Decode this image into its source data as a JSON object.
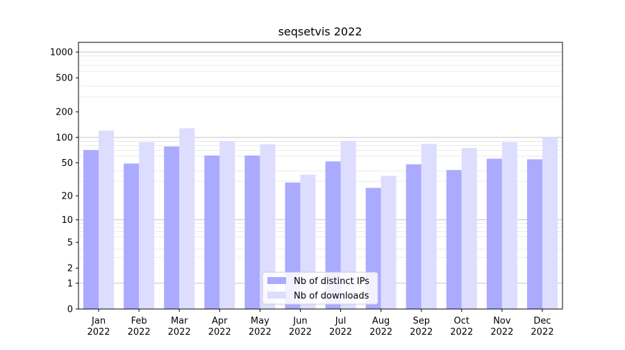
{
  "chart_data": {
    "type": "bar",
    "title": "seqsetvis 2022",
    "xlabel": "",
    "ylabel": "",
    "scale": "log(1+y)",
    "ylim": [
      0,
      1300
    ],
    "yticks": [
      0,
      1,
      2,
      5,
      10,
      20,
      50,
      100,
      200,
      500,
      1000
    ],
    "grid": "major and minor horizontal lines",
    "legend_position": "bottom-center",
    "categories": [
      "Jan\n2022",
      "Feb\n2022",
      "Mar\n2022",
      "Apr\n2022",
      "May\n2022",
      "Jun\n2022",
      "Jul\n2022",
      "Aug\n2022",
      "Sep\n2022",
      "Oct\n2022",
      "Nov\n2022",
      "Dec\n2022"
    ],
    "series": [
      {
        "name": "Nb of distinct IPs",
        "color": "#aaaaff",
        "values": [
          71,
          49,
          78,
          61,
          61,
          29,
          52,
          25,
          48,
          41,
          56,
          55
        ]
      },
      {
        "name": "Nb of downloads",
        "color": "#ddddff",
        "values": [
          120,
          88,
          128,
          90,
          83,
          36,
          91,
          35,
          84,
          75,
          88,
          100
        ]
      }
    ]
  }
}
